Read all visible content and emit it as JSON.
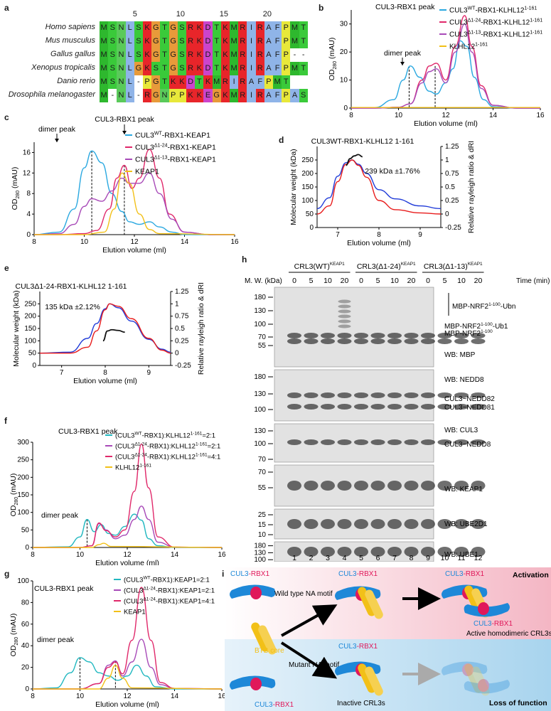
{
  "labels": {
    "a": "a",
    "b": "b",
    "c": "c",
    "d": "d",
    "e": "e",
    "f": "f",
    "g": "g",
    "h": "h",
    "i": "i"
  },
  "panel_a": {
    "positions": [
      "5",
      "10",
      "15",
      "20"
    ],
    "species": [
      "Homo sapiens",
      "Mus musculus",
      "Gallus gallus",
      "Xenopus tropicalis",
      "Danio rerio",
      "Drosophila melanogaster"
    ],
    "sequences": [
      "MSNLSKGTGSRKDTKMRIRAFPMT",
      "MSNLSKGTGSRKDTKMRIRAFPMT",
      "MSNLSKGTGSRKDTKMRIRAFP--",
      "MSNLGKSTGSRKDTKMRIRAFPMT",
      "MSNL-PGTKKDTKMRIRAFPMT  ",
      "M-NL-RGNPPKKEGKMRIRAFPAS"
    ],
    "colors": {
      "M": "#2eb82e",
      "S": "#3aca3a",
      "N": "#5aca5a",
      "L": "#8fb4e8",
      "K": "#e8252a",
      "G": "#e89a3a",
      "T": "#3aca3a",
      "R": "#e8252a",
      "D": "#cc44cc",
      "I": "#8fb4e8",
      "A": "#8fb4e8",
      "F": "#8fb4e8",
      "P": "#e8e83a",
      "E": "#cc44cc",
      "-": "#ffffff"
    }
  },
  "panel_b": {
    "annotations": [
      "CUL3-RBX1 peak",
      "dimer peak"
    ],
    "chart_data": {
      "type": "line",
      "xlabel": "Elution volume (ml)",
      "ylabel": "OD280 (mAU)",
      "xlim": [
        8,
        16
      ],
      "ylim": [
        0,
        35
      ],
      "xticks": [
        8,
        10,
        12,
        14,
        16
      ],
      "yticks": [
        0,
        10,
        20,
        30
      ],
      "series": [
        {
          "name": "CUL3WT-RBX1-KLHL12 1-161",
          "color": "#2aa8e0",
          "x": [
            8,
            9,
            9.8,
            10.2,
            10.5,
            10.9,
            11.3,
            11.6,
            12,
            12.3,
            12.6,
            12.9,
            13.2,
            13.6,
            14,
            15,
            16
          ],
          "y": [
            0,
            0.2,
            3,
            10,
            15,
            11,
            6,
            5,
            9,
            14,
            24,
            22,
            11,
            3,
            0.5,
            0,
            0
          ]
        },
        {
          "name": "CUL3Δ1-24-RBX1-KLHL12 1-161",
          "color": "#e0286a",
          "x": [
            8,
            9,
            10,
            10.5,
            11,
            11.3,
            11.6,
            12,
            12.4,
            12.8,
            13.1,
            13.5,
            14,
            15,
            16
          ],
          "y": [
            0,
            0,
            0.3,
            1.5,
            10,
            15,
            16,
            10,
            22,
            33,
            22,
            8,
            1,
            0,
            0
          ]
        },
        {
          "name": "CUL3Δ1-13-RBX1-KLHL12 1-161",
          "color": "#a84ab8",
          "x": [
            8,
            9,
            10,
            10.5,
            11,
            11.3,
            11.6,
            12,
            12.4,
            12.8,
            13.1,
            13.5,
            14,
            15,
            16
          ],
          "y": [
            0,
            0,
            0.3,
            1.5,
            9,
            13,
            14,
            9,
            20,
            30,
            20,
            7,
            1,
            0,
            0
          ]
        },
        {
          "name": "KLHL12 1-161",
          "color": "#f2c018",
          "x": [
            8,
            16
          ],
          "y": [
            0.2,
            0.2
          ]
        }
      ]
    }
  },
  "panel_c": {
    "annotations": [
      "CUL3-RBX1 peak",
      "dimer peak"
    ],
    "chart_data": {
      "type": "line",
      "xlabel": "Elution volume (ml)",
      "ylabel": "OD280 (mAU)",
      "xlim": [
        8,
        16
      ],
      "ylim": [
        0,
        18
      ],
      "xticks": [
        8,
        10,
        12,
        14,
        16
      ],
      "yticks": [
        0,
        4,
        8,
        12,
        16
      ],
      "series": [
        {
          "name": "CUL3WT-RBX1-KEAP1",
          "color": "#2aa8e0",
          "x": [
            8,
            9,
            9.6,
            10,
            10.3,
            10.7,
            11.1,
            11.5,
            11.8,
            12.2,
            12.6,
            13,
            13.5,
            14,
            15,
            16
          ],
          "y": [
            0,
            0.5,
            5,
            13,
            16.3,
            14,
            8,
            4.5,
            2.5,
            2,
            2.5,
            1.5,
            0.5,
            0,
            0,
            0
          ]
        },
        {
          "name": "CUL3Δ1-24-RBX1-KEAP1",
          "color": "#e0286a",
          "x": [
            8,
            9,
            10,
            10.5,
            11,
            11.3,
            11.6,
            11.9,
            12.2,
            12.6,
            13,
            13.4,
            14,
            15,
            16
          ],
          "y": [
            0,
            0,
            0.2,
            0.8,
            5,
            11,
            13.5,
            9,
            11,
            16.6,
            11,
            4,
            0.5,
            0,
            0
          ]
        },
        {
          "name": "CUL3Δ1-13-RBX1-KEAP1",
          "color": "#a84ab8",
          "x": [
            8,
            9,
            9.6,
            10,
            10.3,
            10.7,
            11.1,
            11.5,
            11.8,
            12.2,
            12.6,
            13,
            13.5,
            14,
            15,
            16
          ],
          "y": [
            0,
            0.2,
            2,
            5.5,
            7,
            6.5,
            8.5,
            11,
            10,
            10,
            12,
            8,
            3,
            0.5,
            0,
            0
          ]
        },
        {
          "name": "KEAP1",
          "color": "#f2c018",
          "x": [
            8,
            10,
            10.8,
            11.2,
            11.5,
            11.8,
            12.2,
            12.6,
            13,
            16
          ],
          "y": [
            0,
            0,
            0.5,
            5,
            12,
            10,
            4,
            1,
            0.2,
            0
          ]
        }
      ]
    }
  },
  "panel_d": {
    "title": "CUL3WT-RBX1-KLHL12 1-161",
    "annotation": "239 kDa ±1.76%",
    "chart_data": {
      "type": "line",
      "xlabel": "Elution volume (ml)",
      "ylabel": "Molecular weight (kDa)",
      "y2label": "Relative rayleigh ratio & dRI",
      "xlim": [
        6.5,
        9.5
      ],
      "ylim": [
        0,
        300
      ],
      "y2lim": [
        -0.25,
        1.25
      ],
      "xticks": [
        7,
        8,
        9
      ],
      "yticks": [
        0,
        50,
        100,
        150,
        200,
        250
      ],
      "y2ticks": [
        -0.25,
        0,
        0.25,
        0.5,
        0.75,
        1,
        1.25
      ],
      "series": [
        {
          "name": "",
          "color": "#1f3ad8",
          "x": [
            6.5,
            6.8,
            7.0,
            7.2,
            7.35,
            7.5,
            7.7,
            8.0,
            8.4,
            9.0,
            9.5
          ],
          "y": [
            0.1,
            0.3,
            0.7,
            0.95,
            1.0,
            0.92,
            0.75,
            0.45,
            0.28,
            0.15,
            0.1
          ]
        },
        {
          "name": "",
          "color": "#e81c1c",
          "x": [
            6.5,
            6.8,
            7.0,
            7.2,
            7.35,
            7.5,
            7.7,
            8.0,
            8.4,
            9.0,
            9.5
          ],
          "y": [
            0.0,
            0.15,
            0.6,
            0.92,
            1.0,
            0.9,
            0.68,
            0.25,
            0.08,
            0.02,
            0.0
          ]
        },
        {
          "name": "",
          "color": "#111111",
          "x": [
            7.2,
            7.3,
            7.4,
            7.5,
            7.6
          ],
          "y": [
            230,
            255,
            265,
            270,
            262
          ]
        }
      ]
    }
  },
  "panel_e": {
    "title": "CUL3Δ1-24-RBX1-KLHL12 1-161",
    "annotation": "135 kDa ±2.12%",
    "chart_data": {
      "type": "line",
      "xlabel": "Elution volume (ml)",
      "ylabel": "Molecular weight (kDa)",
      "y2label": "Relative rayleigh ratio & dRI",
      "xlim": [
        6.5,
        9.5
      ],
      "ylim": [
        0,
        300
      ],
      "y2lim": [
        -0.25,
        1.25
      ],
      "xticks": [
        7,
        8,
        9
      ],
      "yticks": [
        0,
        50,
        100,
        150,
        200,
        250
      ],
      "y2ticks": [
        -0.25,
        0,
        0.25,
        0.5,
        0.75,
        1,
        1.25
      ],
      "series": [
        {
          "name": "",
          "color": "#1f3ad8",
          "x": [
            6.5,
            7.2,
            7.6,
            7.8,
            8.0,
            8.1,
            8.3,
            8.6,
            9.0,
            9.3,
            9.5
          ],
          "y": [
            0,
            0.02,
            0.3,
            0.6,
            0.9,
            1.0,
            0.92,
            0.65,
            0.28,
            0.08,
            0.02
          ]
        },
        {
          "name": "",
          "color": "#e81c1c",
          "x": [
            6.5,
            7.2,
            7.6,
            7.8,
            8.0,
            8.1,
            8.3,
            8.6,
            9.0,
            9.3,
            9.5
          ],
          "y": [
            0,
            0,
            0.12,
            0.45,
            0.88,
            1.0,
            0.95,
            0.7,
            0.3,
            0.06,
            0.0
          ]
        },
        {
          "name": "",
          "color": "#111111",
          "x": [
            7.95,
            8.05,
            8.15,
            8.3,
            8.45
          ],
          "y": [
            100,
            140,
            145,
            142,
            135
          ]
        }
      ]
    }
  },
  "panel_f": {
    "annotations": [
      "CUL3-RBX1 peak",
      "dimer peak"
    ],
    "chart_data": {
      "type": "line",
      "xlabel": "Elution volume (ml)",
      "ylabel": "OD280 (mAU)",
      "xlim": [
        8,
        16
      ],
      "ylim": [
        0,
        300
      ],
      "xticks": [
        8,
        10,
        12,
        14,
        16
      ],
      "yticks": [
        0,
        50,
        100,
        150,
        200,
        250,
        300
      ],
      "series": [
        {
          "name": "(CUL3WT-RBX1):KLHL12 1-161=2:1",
          "color": "#22b8c0",
          "x": [
            8,
            9.5,
            10,
            10.3,
            10.6,
            10.9,
            11.2,
            11.5,
            11.9,
            12.3,
            12.6,
            12.9,
            13.3,
            14,
            16
          ],
          "y": [
            0,
            2,
            30,
            80,
            45,
            65,
            40,
            35,
            60,
            95,
            78,
            25,
            5,
            0,
            0
          ]
        },
        {
          "name": "(CUL3Δ1-24-RBX1):KLHL12 1-161=2:1",
          "color": "#a84ab8",
          "x": [
            8,
            10,
            10.5,
            10.8,
            11.1,
            11.5,
            11.9,
            12.3,
            12.6,
            12.9,
            13.3,
            14,
            16
          ],
          "y": [
            0,
            0,
            5,
            68,
            50,
            25,
            35,
            80,
            118,
            80,
            15,
            1,
            0
          ]
        },
        {
          "name": "(CUL3Δ1-24-RBX1):KLHL12 1-161=4:1",
          "color": "#e0286a",
          "x": [
            8,
            10,
            10.5,
            10.8,
            11.1,
            11.5,
            11.9,
            12.3,
            12.6,
            12.9,
            13.3,
            14,
            16
          ],
          "y": [
            0,
            0,
            5,
            70,
            48,
            30,
            50,
            160,
            295,
            170,
            30,
            1,
            0
          ]
        },
        {
          "name": "KLHL12 1-161",
          "color": "#f2c018",
          "x": [
            8,
            10.5,
            10.8,
            11,
            11.3,
            16
          ],
          "y": [
            0,
            0,
            8,
            12,
            3,
            0
          ]
        }
      ]
    }
  },
  "panel_g": {
    "annotations": [
      "CUL3-RBX1 peak",
      "dimer peak"
    ],
    "chart_data": {
      "type": "line",
      "xlabel": "Elution volume (ml)",
      "ylabel": "OD280 (mAU)",
      "xlim": [
        8,
        16
      ],
      "ylim": [
        0,
        100
      ],
      "xticks": [
        8,
        10,
        12,
        14,
        16
      ],
      "yticks": [
        0,
        20,
        40,
        60,
        80,
        100
      ],
      "series": [
        {
          "name": "(CUL3WT-RBX1):KEAP1=2:1",
          "color": "#22b8c0",
          "x": [
            8,
            9,
            9.6,
            10,
            10.4,
            10.8,
            11.2,
            11.6,
            12,
            12.4,
            12.8,
            13.2,
            14,
            16
          ],
          "y": [
            0,
            1,
            15,
            29,
            25,
            15,
            12,
            8,
            12,
            22,
            12,
            2,
            0,
            0
          ]
        },
        {
          "name": "(CUL3Δ1-24-RBX1):KEAP1=2:1",
          "color": "#a84ab8",
          "x": [
            8,
            10,
            10.8,
            11.2,
            11.5,
            11.8,
            12.2,
            12.6,
            13,
            13.4,
            14,
            16
          ],
          "y": [
            0,
            0,
            5,
            22,
            26,
            12,
            25,
            46,
            20,
            4,
            0.5,
            0
          ]
        },
        {
          "name": "(CUL3Δ1-24-RBX1):KEAP1=4:1",
          "color": "#e0286a",
          "x": [
            8,
            10,
            10.8,
            11.2,
            11.5,
            11.8,
            12.2,
            12.6,
            13,
            13.4,
            14,
            16
          ],
          "y": [
            0,
            0,
            5,
            20,
            25,
            14,
            45,
            94,
            45,
            6,
            0.5,
            0
          ]
        },
        {
          "name": "KEAP1",
          "color": "#f2c018",
          "x": [
            8,
            10.8,
            11.2,
            11.5,
            11.8,
            12.2,
            16
          ],
          "y": [
            0,
            0,
            10,
            22,
            10,
            1,
            0
          ]
        }
      ]
    }
  },
  "panel_h": {
    "mw_header": "M. W. (kDa)",
    "time_header": "Time (min)",
    "groups": [
      "CRL3(WT)KEAP1",
      "CRL3(Δ1-24)KEAP1",
      "CRL3(Δ1-13)KEAP1"
    ],
    "times": [
      "0",
      "5",
      "10",
      "20",
      "0",
      "5",
      "10",
      "20",
      "0",
      "5",
      "10",
      "20"
    ],
    "lanes": [
      "1",
      "2",
      "3",
      "4",
      "5",
      "6",
      "7",
      "8",
      "9",
      "10",
      "11",
      "12"
    ],
    "blots": [
      {
        "wb": "WB: MBP",
        "mw": [
          "180",
          "130",
          "100",
          "70",
          "55"
        ],
        "bands": [
          "MBP-NRF2 1-100-Ubn",
          "MBP-NRF2 1-100-Ub1",
          "MBP-NRF2 1-100"
        ]
      },
      {
        "wb": "WB: NEDD8",
        "mw": [
          "180",
          "130",
          "100"
        ],
        "bands": [
          "CUL3~NEDD82",
          "CUL3~NEDD81"
        ]
      },
      {
        "wb": "WB: CUL3",
        "mw": [
          "130",
          "100",
          "70"
        ],
        "bands": [
          "CUL3~NEDD8"
        ]
      },
      {
        "wb": "WB: KEAP1",
        "mw": [
          "70",
          "55"
        ],
        "bands": []
      },
      {
        "wb": "WB: UBE2D1",
        "mw": [
          "25",
          "15",
          "10"
        ],
        "bands": []
      },
      {
        "wb": "WB: UBE1",
        "mw": [
          "180",
          "130",
          "100"
        ],
        "bands": []
      }
    ]
  },
  "panel_i": {
    "labels": [
      "CUL3-RBX1",
      "Wild type NA motif",
      "CUL3-RBX1",
      "CUL3-RBX1",
      "CUL3-RBX1",
      "Activation",
      "Active homodimeric CRL3s",
      "BTB core",
      "CUL3-RBX1",
      "Mutant NA motif",
      "Inactive CRL3s",
      "Loss of function",
      "CUL3-RBX1"
    ]
  }
}
